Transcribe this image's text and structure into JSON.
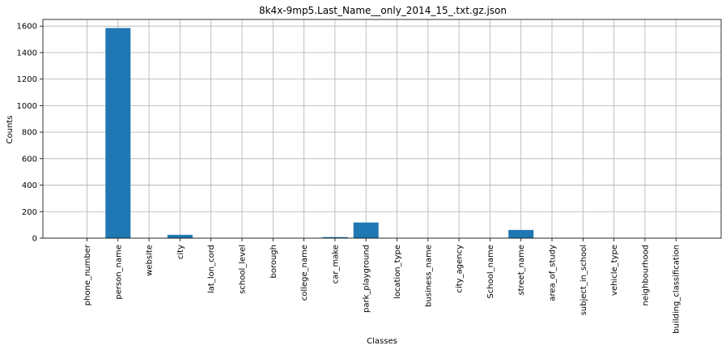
{
  "chart_data": {
    "type": "bar",
    "title": "8k4x-9mp5.Last_Name__only_2014_15_.txt.gz.json",
    "xlabel": "Classes",
    "ylabel": "Counts",
    "ylim": [
      0,
      1650
    ],
    "yticks": [
      0,
      200,
      400,
      600,
      800,
      1000,
      1200,
      1400,
      1600
    ],
    "grid": true,
    "bar_color": "#1f77b4",
    "categories": [
      "phone_number",
      "person_name",
      "website",
      "city",
      "lat_lon_cord",
      "school_level",
      "borough",
      "college_name",
      "car_make",
      "park_playground",
      "location_type",
      "business_name",
      "city_agency",
      "School_name",
      "street_name",
      "area_of_study",
      "subject_in_school",
      "vehicle_type",
      "neighbourhood",
      "building_classification"
    ],
    "values": [
      0,
      1585,
      0,
      25,
      0,
      0,
      0,
      0,
      8,
      118,
      0,
      0,
      0,
      0,
      62,
      0,
      0,
      0,
      0,
      0
    ]
  }
}
